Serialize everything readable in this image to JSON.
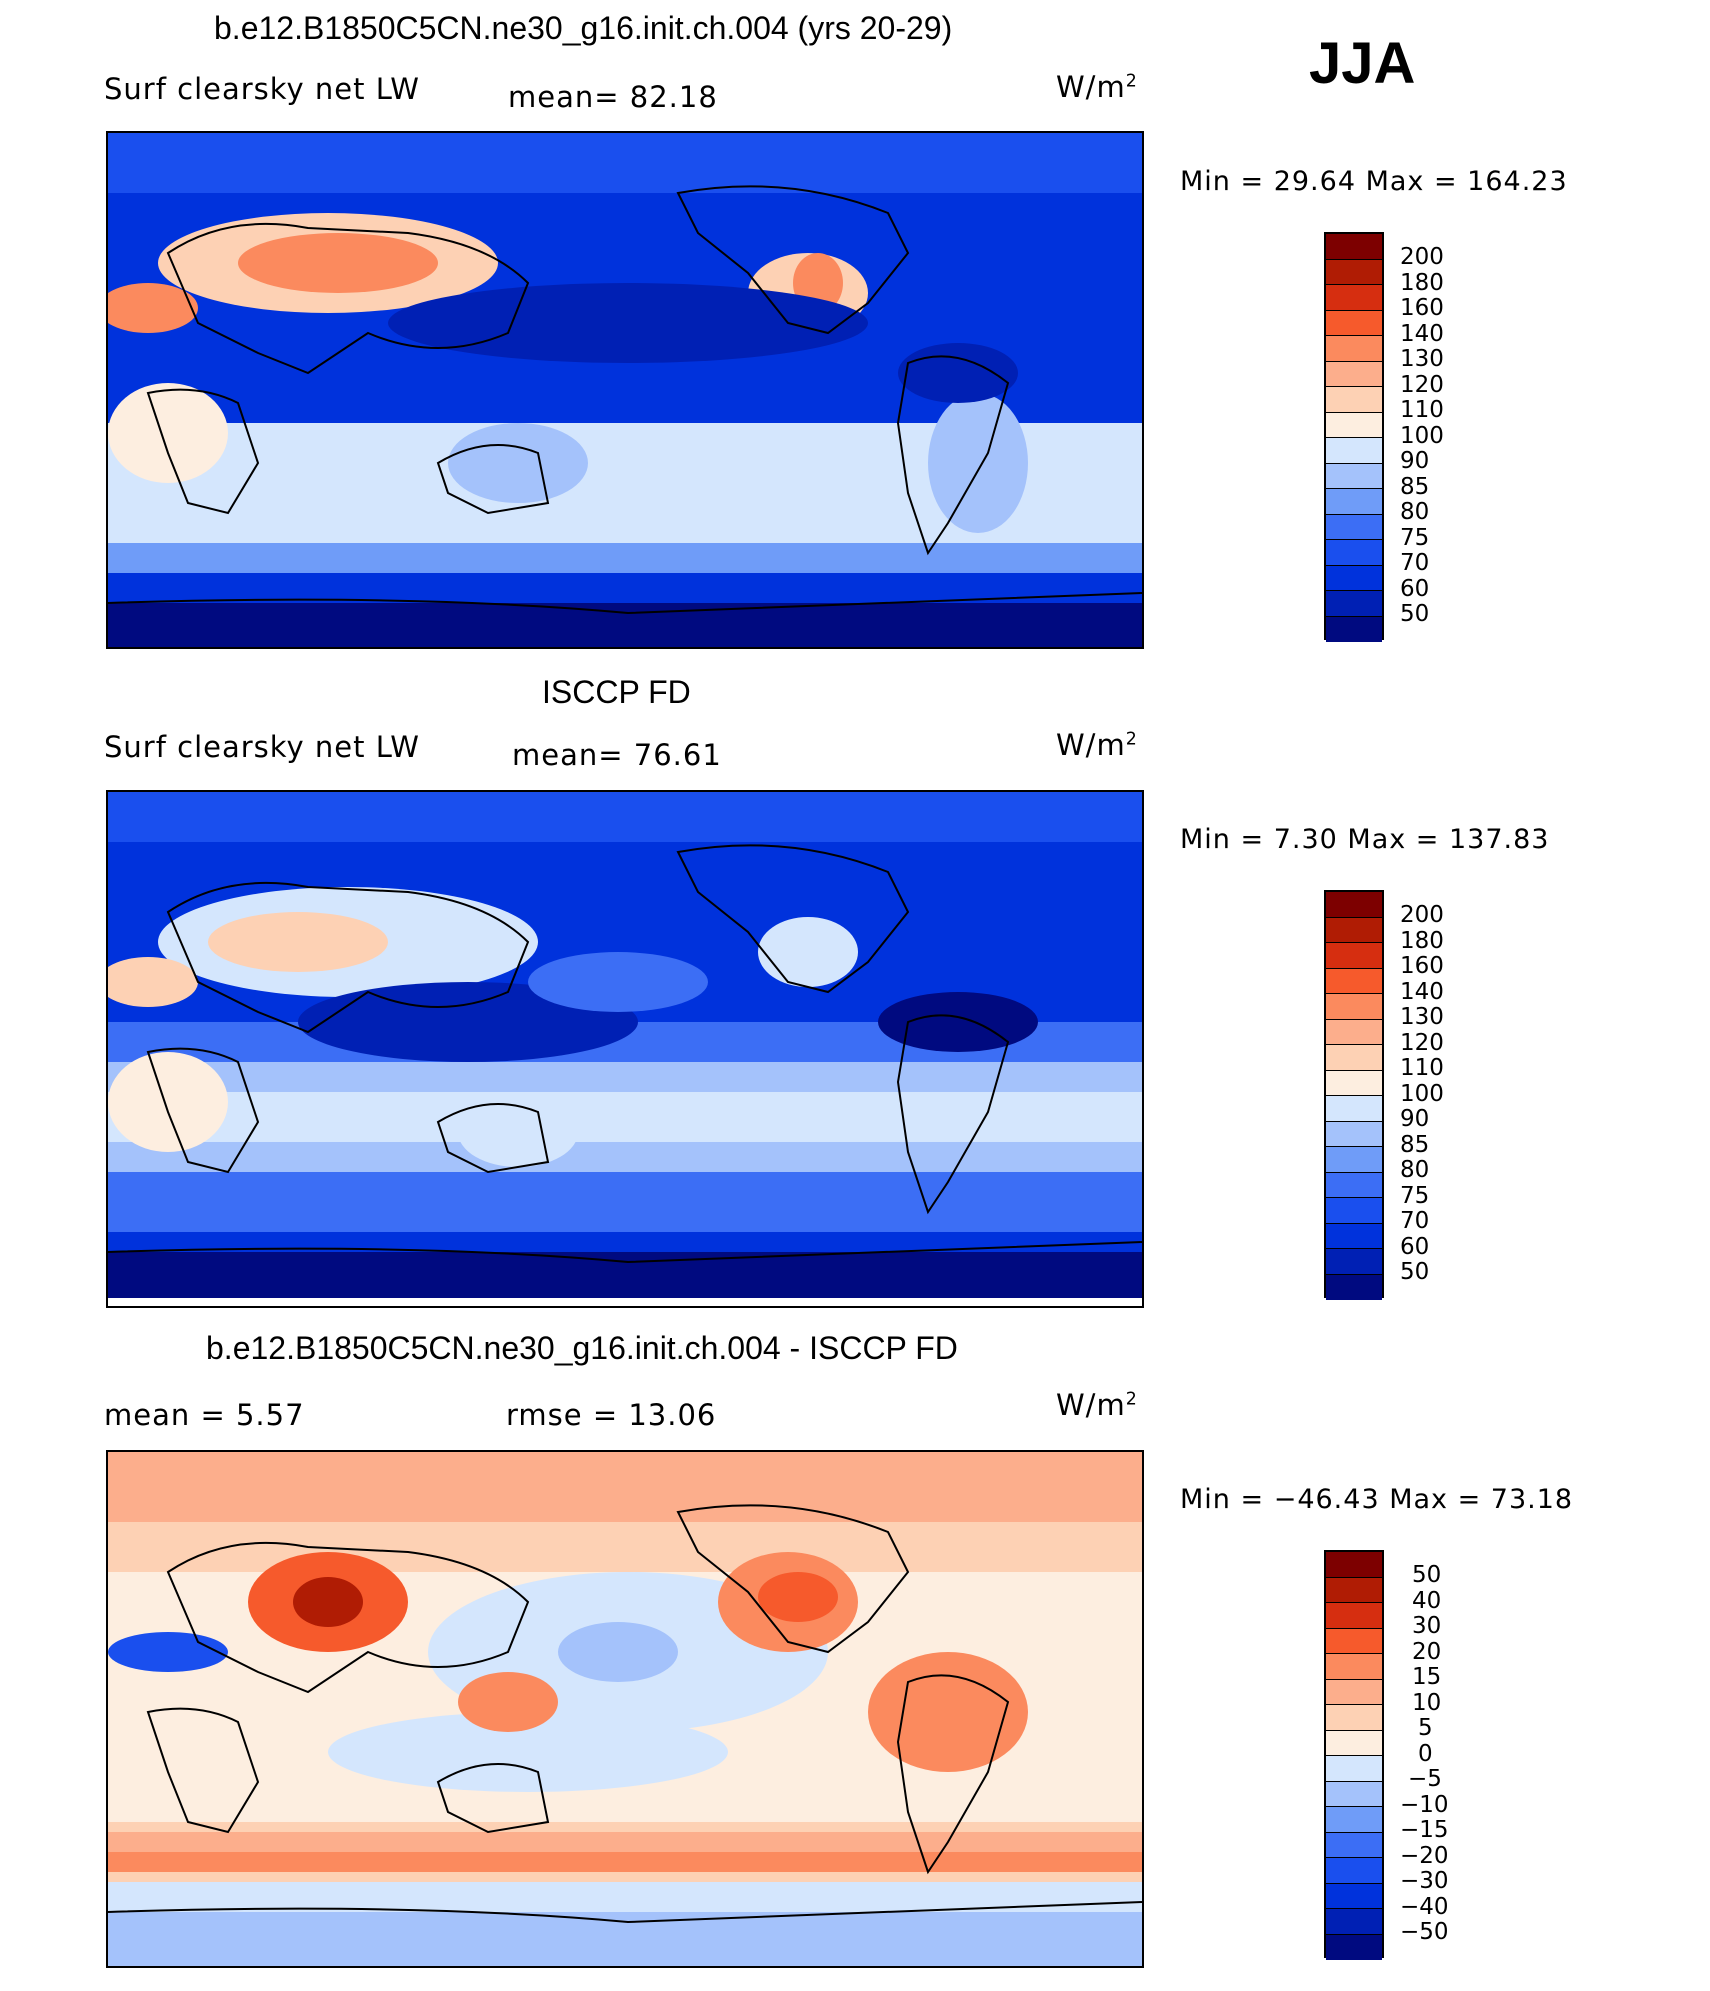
{
  "season": "JJA",
  "colors": {
    "scale": [
      "#000a80",
      "#0020b4",
      "#0032dc",
      "#1a4fee",
      "#3c6ef5",
      "#6f9cf8",
      "#a4c2fb",
      "#d4e6fd",
      "#fdeee0",
      "#fdd1b4",
      "#fcae8c",
      "#fb8a5e",
      "#f65a2c",
      "#d62e10",
      "#b01c04",
      "#7d0000"
    ]
  },
  "panels": [
    {
      "title": "b.e12.B1850C5CN.ne30_g16.init.ch.004 (yrs 20-29)",
      "left_label": "Surf  clearsky  net  LW",
      "mid_label": "mean=   82.18",
      "unit_base": "W/m",
      "unit_exp": "2",
      "minmax": "Min  =    29.64  Max  =  164.23",
      "legend_ticks": [
        "200",
        "180",
        "160",
        "140",
        "130",
        "120",
        "110",
        "100",
        "90",
        "85",
        "80",
        "75",
        "70",
        "60",
        "50"
      ]
    },
    {
      "title": "ISCCP FD",
      "left_label": "Surf  clearsky  net  LW",
      "mid_label": "mean=   76.61",
      "unit_base": "W/m",
      "unit_exp": "2",
      "minmax": "Min  =     7.30  Max  =  137.83",
      "legend_ticks": [
        "200",
        "180",
        "160",
        "140",
        "130",
        "120",
        "110",
        "100",
        "90",
        "85",
        "80",
        "75",
        "70",
        "60",
        "50"
      ]
    },
    {
      "title": "b.e12.B1850C5CN.ne30_g16.init.ch.004 - ISCCP FD",
      "left_label": "mean  =      5.57",
      "mid_label": "rmse  =    13.06",
      "unit_base": "W/m",
      "unit_exp": "2",
      "minmax": "Min  = −46.43  Max  =    73.18",
      "legend_ticks": [
        "50",
        "40",
        "30",
        "20",
        "15",
        "10",
        "5",
        "0",
        "−5",
        "−10",
        "−15",
        "−20",
        "−30",
        "−40",
        "−50"
      ]
    }
  ]
}
